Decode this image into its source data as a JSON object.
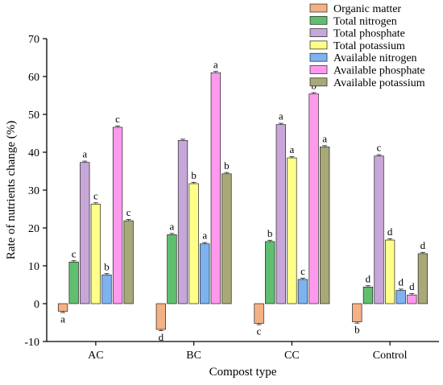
{
  "chart_data": {
    "type": "bar",
    "xlabel": "Compost type",
    "ylabel": "Rate of nutrients change (%)",
    "ylim": [
      -10,
      70
    ],
    "yticks": [
      -10,
      0,
      10,
      20,
      30,
      40,
      50,
      60,
      70
    ],
    "categories": [
      "AC",
      "BC",
      "CC",
      "Control"
    ],
    "legend_position": "top-right",
    "grid": false,
    "series": [
      {
        "name": "Organic matter",
        "color": "#f4b183",
        "values": [
          -2.0,
          -6.8,
          -5.2,
          -4.8
        ],
        "labels": [
          "a",
          "d",
          "c",
          "b"
        ]
      },
      {
        "name": "Total nitrogen",
        "color": "#5fbf6f",
        "values": [
          11.0,
          18.2,
          16.4,
          4.4
        ],
        "labels": [
          "c",
          "a",
          "b",
          "d"
        ]
      },
      {
        "name": "Total phosphate",
        "color": "#c7a6d8",
        "values": [
          37.3,
          43.1,
          47.3,
          39.0
        ],
        "labels": [
          "a",
          "",
          "a",
          "c"
        ]
      },
      {
        "name": "Total potassium",
        "color": "#ffff88",
        "values": [
          26.3,
          31.7,
          38.5,
          16.8
        ],
        "labels": [
          "c",
          "b",
          "a",
          "d"
        ]
      },
      {
        "name": "Available nitrogen",
        "color": "#7fb2f0",
        "values": [
          7.6,
          15.8,
          6.4,
          3.5
        ],
        "labels": [
          "b",
          "a",
          "c",
          "d"
        ]
      },
      {
        "name": "Available phosphate",
        "color": "#ff99ee",
        "values": [
          46.6,
          61.0,
          55.4,
          2.3
        ],
        "labels": [
          "c",
          "a",
          "b",
          "d"
        ]
      },
      {
        "name": "Available potassium",
        "color": "#a9a878",
        "values": [
          21.9,
          34.3,
          41.4,
          13.2
        ],
        "labels": [
          "c",
          "b",
          "a",
          "d"
        ]
      }
    ]
  }
}
